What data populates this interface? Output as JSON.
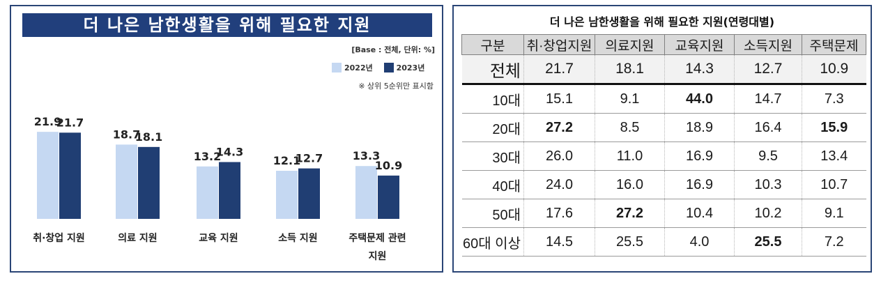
{
  "left": {
    "title": "더 나은 남한생활을 위해 필요한 지원",
    "base_note": "[Base : 전체, 단위: %]",
    "rank_note": "※ 상위 5순위만 표시함"
  },
  "colors": {
    "series_2022": "#c5d8f2",
    "series_2023": "#203e73",
    "title_bg": "#213f7c"
  },
  "chart_data": {
    "type": "bar",
    "categories": [
      "취·창업 지원",
      "의료 지원",
      "교육 지원",
      "소득 지원",
      "주택문제 관련 지원"
    ],
    "category_lines": [
      [
        "취·창업 지원"
      ],
      [
        "의료 지원"
      ],
      [
        "교육 지원"
      ],
      [
        "소득 지원"
      ],
      [
        "주택문제 관련",
        "지원"
      ]
    ],
    "series": [
      {
        "name": "2022년",
        "values": [
          21.9,
          18.7,
          13.2,
          12.1,
          13.3
        ]
      },
      {
        "name": "2023년",
        "values": [
          21.7,
          18.1,
          14.3,
          12.7,
          10.9
        ]
      }
    ],
    "legend_position": "top-right",
    "ylim": [
      0,
      25
    ]
  },
  "right": {
    "title": "더 나은 남한생활을 위해 필요한 지원(연령대별)",
    "headers": [
      "구분",
      "취·창업지원",
      "의료지원",
      "교육지원",
      "소득지원",
      "주택문제"
    ],
    "rows": [
      {
        "label": "전체",
        "values": [
          "21.7",
          "18.1",
          "14.3",
          "12.7",
          "10.9"
        ],
        "bold": []
      },
      {
        "label": "10대",
        "values": [
          "15.1",
          "9.1",
          "44.0",
          "14.7",
          "7.3"
        ],
        "bold": [
          2
        ]
      },
      {
        "label": "20대",
        "values": [
          "27.2",
          "8.5",
          "18.9",
          "16.4",
          "15.9"
        ],
        "bold": [
          0,
          4
        ]
      },
      {
        "label": "30대",
        "values": [
          "26.0",
          "11.0",
          "16.9",
          "9.5",
          "13.4"
        ],
        "bold": []
      },
      {
        "label": "40대",
        "values": [
          "24.0",
          "16.0",
          "16.9",
          "10.3",
          "10.7"
        ],
        "bold": []
      },
      {
        "label": "50대",
        "values": [
          "17.6",
          "27.2",
          "10.4",
          "10.2",
          "9.1"
        ],
        "bold": [
          1
        ]
      },
      {
        "label": "60대 이상",
        "values": [
          "14.5",
          "25.5",
          "4.0",
          "25.5",
          "7.2"
        ],
        "bold": [
          3
        ]
      }
    ]
  }
}
